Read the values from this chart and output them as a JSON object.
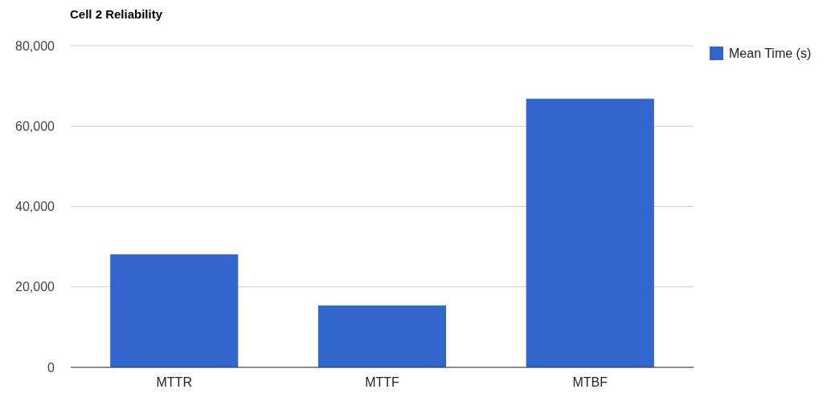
{
  "chart_data": {
    "type": "bar",
    "title": "Cell 2 Reliability",
    "categories": [
      "MTTR",
      "MTTF",
      "MTBF"
    ],
    "series": [
      {
        "name": "Mean Time (s)",
        "color": "#3366cc",
        "values": [
          28100,
          15400,
          66800
        ]
      }
    ],
    "ylim": [
      0,
      80000
    ],
    "yticks": [
      {
        "value": 0,
        "label": "0"
      },
      {
        "value": 20000,
        "label": "20,000"
      },
      {
        "value": 40000,
        "label": "40,000"
      },
      {
        "value": 60000,
        "label": "60,000"
      },
      {
        "value": 80000,
        "label": "80,000"
      }
    ],
    "grid": "y",
    "legend": "right"
  }
}
